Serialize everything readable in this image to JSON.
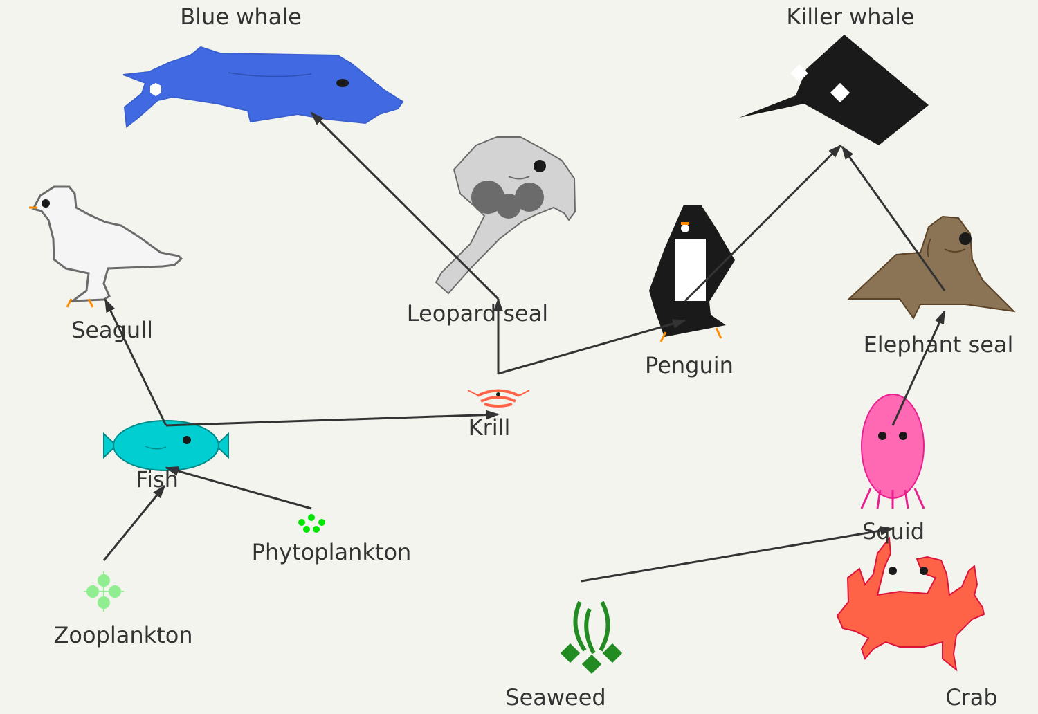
{
  "organisms": {
    "blue_whale": "Blue whale",
    "killer_whale": "Killer whale",
    "seagull": "Seagull",
    "leopard_seal": "Leopard seal",
    "penguin": "Penguin",
    "elephant_seal": "Elephant seal",
    "krill": "Krill",
    "fish": "Fish",
    "squid": "Squid",
    "phytoplankton": "Phytoplankton",
    "zooplankton": "Zooplankton",
    "seaweed": "Seaweed",
    "crab": "Crab"
  },
  "links": [
    {
      "from": "zooplankton",
      "to": "fish"
    },
    {
      "from": "phytoplankton",
      "to": "fish"
    },
    {
      "from": "fish",
      "to": "seagull"
    },
    {
      "from": "fish",
      "to": "krill"
    },
    {
      "from": "krill",
      "to": "leopard_seal"
    },
    {
      "from": "leopard_seal",
      "to": "blue_whale"
    },
    {
      "from": "krill",
      "to": "penguin"
    },
    {
      "from": "penguin",
      "to": "killer_whale"
    },
    {
      "from": "elephant_seal",
      "to": "killer_whale"
    },
    {
      "from": "squid",
      "to": "elephant_seal"
    },
    {
      "from": "seaweed",
      "to": "squid"
    }
  ],
  "colors": {
    "background": "#f4f4ef",
    "arrow": "#333333",
    "blue_whale": "#4169e1",
    "killer_whale": "#1a1a1a",
    "leopard_seal": "#d3d3d3",
    "elephant_seal": "#8b7355",
    "fish": "#00ced1",
    "squid": "#ff69b4",
    "crab": "#ff6347",
    "seaweed": "#228b22",
    "phytoplankton": "#00e600",
    "zooplankton": "#90ee90",
    "krill": "#ff6347"
  }
}
